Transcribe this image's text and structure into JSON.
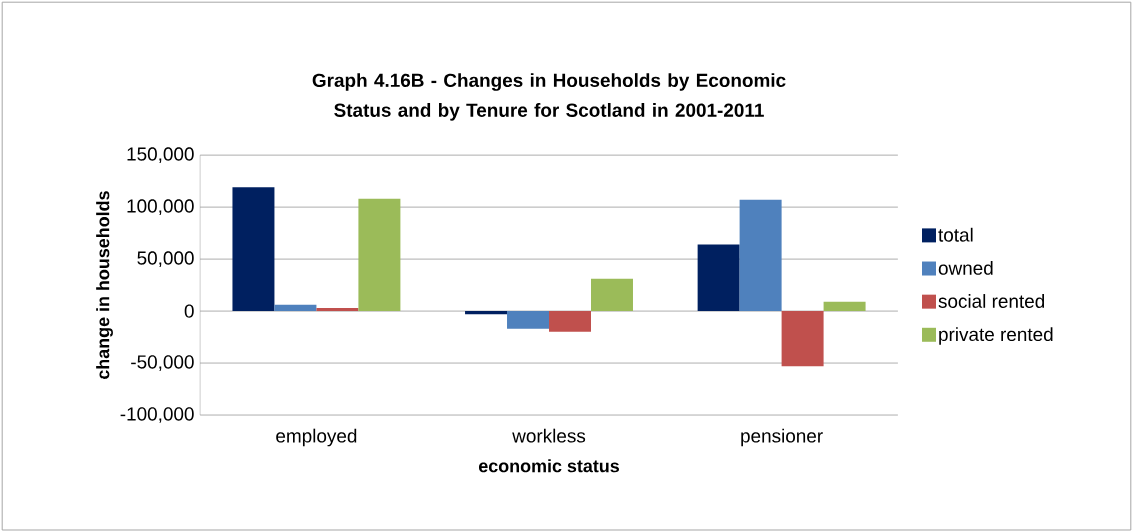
{
  "chart_data": {
    "type": "bar",
    "title": "Graph 4.16B - Changes in Households by Economic Status and by Tenure for Scotland in 2001-2011",
    "xlabel": "economic status",
    "ylabel": "change in households",
    "categories": [
      "employed",
      "workless",
      "pensioner"
    ],
    "series": [
      {
        "name": "total",
        "color": "#002060",
        "values": [
          119000,
          -3000,
          64000
        ]
      },
      {
        "name": "owned",
        "color": "#4f81bd",
        "values": [
          6000,
          -17000,
          107000
        ]
      },
      {
        "name": "social rented",
        "color": "#c0504d",
        "values": [
          3000,
          -20000,
          -53000
        ]
      },
      {
        "name": "private rented",
        "color": "#9bbb59",
        "values": [
          108000,
          31000,
          9000
        ]
      }
    ],
    "ylim": [
      -100000,
      150000
    ],
    "yticks": [
      {
        "value": -100000,
        "label": "-100,000"
      },
      {
        "value": -50000,
        "label": "-50,000"
      },
      {
        "value": 0,
        "label": "0"
      },
      {
        "value": 50000,
        "label": "50,000"
      },
      {
        "value": 100000,
        "label": "100,000"
      },
      {
        "value": 150000,
        "label": "150,000"
      }
    ],
    "grid": "y",
    "legend": "right"
  }
}
